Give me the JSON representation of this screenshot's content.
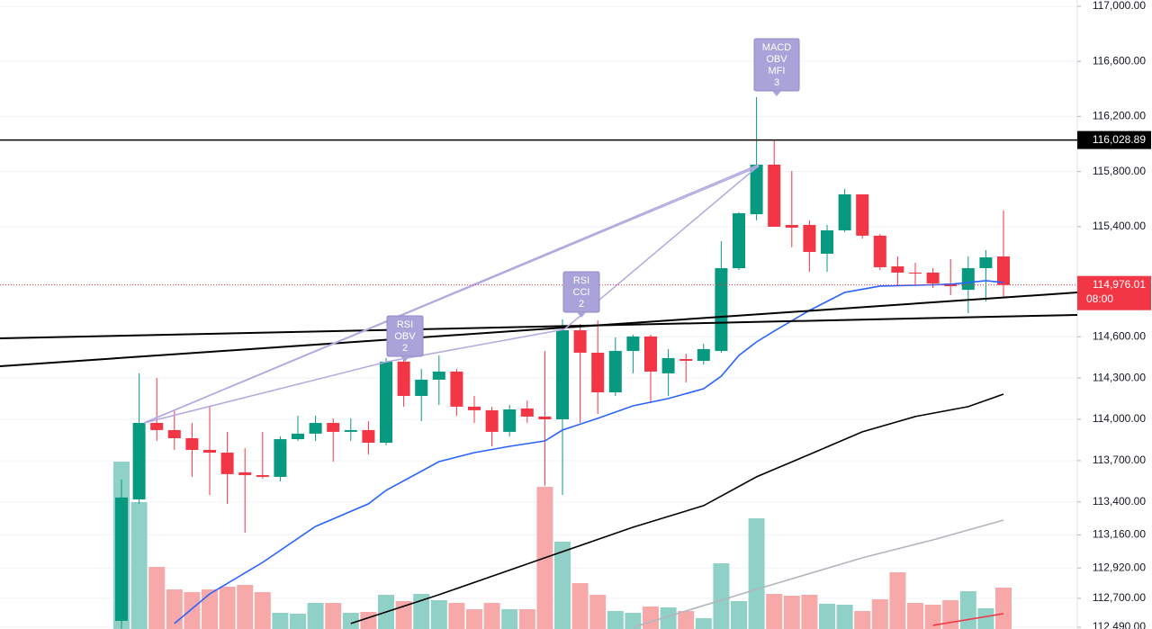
{
  "chart_data": {
    "type": "candlestick",
    "open": [
      112536,
      113418,
      113974,
      113922,
      113863,
      113778,
      113758,
      113615,
      113595,
      113582,
      113856,
      113896,
      113974,
      113909,
      113922,
      113830,
      114419,
      114170,
      114288,
      114347,
      114092,
      114066,
      113909,
      114079,
      114020,
      114000,
      114647,
      114484,
      114196,
      114497,
      114602,
      114334,
      114438,
      114425,
      114497,
      115098,
      115490,
      115850,
      115412,
      115412,
      115203,
      115373,
      115634,
      115334,
      115111,
      115066,
      115066,
      114987,
      114941,
      115098,
      115183
    ],
    "high": [
      113562,
      114334,
      114301,
      114072,
      113974,
      114092,
      113909,
      113791,
      113909,
      113876,
      114026,
      114026,
      114007,
      114007,
      113987,
      114445,
      114464,
      114366,
      114464,
      114366,
      114170,
      114092,
      114105,
      114137,
      114497,
      114726,
      114693,
      114719,
      114595,
      114615,
      114615,
      114510,
      114477,
      114549,
      115294,
      115504,
      116340,
      116033,
      115804,
      115445,
      115412,
      115673,
      115634,
      115347,
      115183,
      115137,
      115098,
      115164,
      115183,
      115229,
      115517
    ],
    "low": [
      112480,
      113386,
      113843,
      113778,
      113582,
      113451,
      113386,
      113177,
      113569,
      113549,
      113843,
      113843,
      113693,
      113843,
      113745,
      113811,
      114092,
      113987,
      114105,
      114026,
      113974,
      113804,
      113876,
      113974,
      113517,
      113451,
      113974,
      114039,
      114170,
      114334,
      114118,
      114170,
      114268,
      114399,
      114484,
      115085,
      115445,
      115399,
      115249,
      115072,
      115072,
      115360,
      115314,
      115085,
      114968,
      114968,
      114954,
      114902,
      114771,
      114856,
      114889
    ],
    "close": [
      113432,
      113974,
      113922,
      113863,
      113778,
      113758,
      113602,
      113595,
      113582,
      113856,
      113896,
      113974,
      113909,
      113922,
      113830,
      114419,
      114170,
      114288,
      114347,
      114092,
      114066,
      113909,
      114072,
      114020,
      114000,
      114647,
      114484,
      114196,
      114497,
      114602,
      114347,
      114445,
      114425,
      114510,
      115098,
      115497,
      115850,
      115399,
      115392,
      115216,
      115373,
      115634,
      115334,
      115105,
      115066,
      115059,
      114987,
      114967,
      115098,
      115177,
      114976.01
    ],
    "volume": [
      186,
      141,
      69,
      44,
      41,
      44,
      47,
      49,
      41,
      18,
      17,
      29,
      29,
      18,
      19,
      38,
      31,
      39,
      32,
      29,
      22,
      29,
      22,
      22,
      158,
      97,
      51,
      38,
      20,
      18,
      25,
      24,
      20,
      12,
      73,
      31,
      123,
      39,
      37,
      38,
      28,
      27,
      20,
      33,
      63,
      29,
      27,
      32,
      42,
      23,
      46
    ],
    "up_color": "#089981",
    "down_color": "#f23645",
    "up_volume_color": "#8fd0c7",
    "down_volume_color": "#f7a9a9",
    "ylim": [
      112477,
      117046
    ],
    "yticks": [
      {
        "value": 117000,
        "label": "117,000.00"
      },
      {
        "value": 116600,
        "label": "116,600.00"
      },
      {
        "value": 116200,
        "label": "116,200.00"
      },
      {
        "value": 115800,
        "label": "115,800.00"
      },
      {
        "value": 115400,
        "label": "115,400.00"
      },
      {
        "value": 114600,
        "label": "114,600.00"
      },
      {
        "value": 114300,
        "label": "114,300.00"
      },
      {
        "value": 114000,
        "label": "114,000.00"
      },
      {
        "value": 113700,
        "label": "113,700.00"
      },
      {
        "value": 113400,
        "label": "113,400.00"
      },
      {
        "value": 113160,
        "label": "113,160.00"
      },
      {
        "value": 112920,
        "label": "112,920.00"
      },
      {
        "value": 112700,
        "label": "112,700.00"
      },
      {
        "value": 112490,
        "label": "112,490.00"
      }
    ],
    "grid": true,
    "lines": [
      {
        "color": "#2962ff",
        "x": [
          3,
          5,
          8,
          11,
          14,
          15,
          18,
          20,
          22,
          24,
          25,
          27,
          29,
          31,
          33,
          34,
          35,
          36,
          37,
          39,
          41,
          43,
          45,
          47,
          49,
          50
        ],
        "values": [
          112517,
          112732,
          112961,
          113222,
          113386,
          113484,
          113693,
          113758,
          113804,
          113843,
          113922,
          114007,
          114098,
          114151,
          114222,
          114314,
          114464,
          114562,
          114641,
          114791,
          114922,
          114968,
          114974,
          114981,
          115007,
          114994
        ]
      },
      {
        "color": "#000000",
        "x": [
          13,
          18,
          24,
          29,
          33,
          36,
          39,
          42,
          45,
          48,
          50
        ],
        "values": [
          112517,
          112726,
          112994,
          113216,
          113373,
          113582,
          113745,
          113909,
          114020,
          114092,
          114183
        ]
      },
      {
        "color": "#b2b5be",
        "x": [
          29,
          36,
          42,
          46,
          50
        ],
        "values": [
          112490,
          112765,
          112994,
          113124,
          113268
        ]
      },
      {
        "color": "#f23645",
        "x": [
          46,
          50
        ],
        "values": [
          112504,
          112588
        ]
      }
    ],
    "hline": {
      "value": 116028.89,
      "label": "116,028.89"
    },
    "last_price": {
      "value": 114976.01,
      "label": "114,976.01"
    },
    "countdown": "08:00",
    "annotations": [
      [
        "RSI",
        "OBV",
        "2"
      ],
      [
        "RSI",
        "CCI",
        "2"
      ],
      [
        "MACD",
        "OBV",
        "MFI",
        "3"
      ]
    ]
  }
}
